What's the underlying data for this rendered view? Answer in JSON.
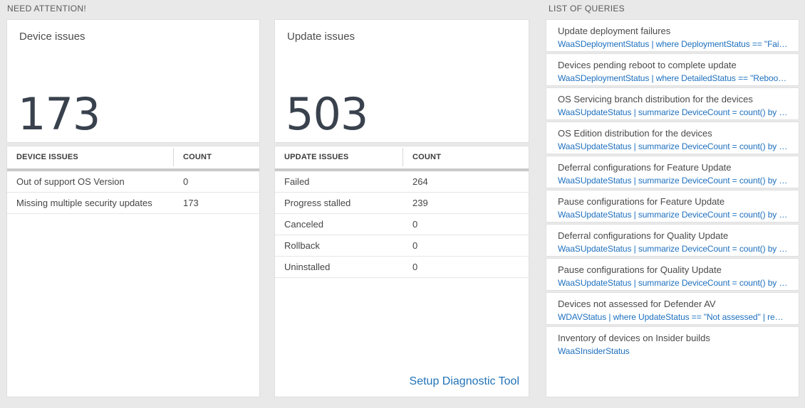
{
  "colors": {
    "page_background": "#e9e9e9",
    "link_blue": "#1e70bf",
    "big_number_color": "#39414d",
    "thick_bar_gray": "#c9c9c9"
  },
  "sections": {
    "need_attention": "NEED ATTENTION!",
    "list_of_queries": "LIST OF QUERIES"
  },
  "device_panel": {
    "title": "Device issues",
    "big_number": "173",
    "table": {
      "headers": [
        "DEVICE ISSUES",
        "COUNT"
      ],
      "rows": [
        [
          "Out of support OS Version",
          "0"
        ],
        [
          "Missing multiple security updates",
          "173"
        ]
      ]
    }
  },
  "update_panel": {
    "title": "Update issues",
    "big_number": "503",
    "table": {
      "headers": [
        "UPDATE ISSUES",
        "COUNT"
      ],
      "rows": [
        [
          "Failed",
          "264"
        ],
        [
          "Progress stalled",
          "239"
        ],
        [
          "Canceled",
          "0"
        ],
        [
          "Rollback",
          "0"
        ],
        [
          "Uninstalled",
          "0"
        ]
      ]
    },
    "link": "Setup Diagnostic Tool"
  },
  "queries": [
    {
      "title": "Update deployment failures",
      "query": "WaaSDeploymentStatus | where DeploymentStatus == \"Failed\" |..."
    },
    {
      "title": "Devices pending reboot to complete update",
      "query": "WaaSDeploymentStatus | where DetailedStatus == \"Reboot pend..."
    },
    {
      "title": "OS Servicing branch distribution for the devices",
      "query": "WaaSUpdateStatus | summarize DeviceCount = count() by OSSer..."
    },
    {
      "title": "OS Edition distribution for the devices",
      "query": "WaaSUpdateStatus | summarize DeviceCount = count() by OSEdit..."
    },
    {
      "title": "Deferral configurations for Feature Update",
      "query": "WaaSUpdateStatus | summarize DeviceCount = count() by Featur..."
    },
    {
      "title": "Pause configurations for Feature Update",
      "query": "WaaSUpdateStatus | summarize DeviceCount = count() by Featur..."
    },
    {
      "title": "Deferral configurations for Quality Update",
      "query": "WaaSUpdateStatus | summarize DeviceCount = count() by Qualit..."
    },
    {
      "title": "Pause configurations for Quality Update",
      "query": "WaaSUpdateStatus | summarize DeviceCount = count() by Qualit..."
    },
    {
      "title": "Devices not assessed for Defender AV",
      "query": "WDAVStatus | where UpdateStatus == \"Not assessed\" | render ta..."
    },
    {
      "title": "Inventory of devices on Insider builds",
      "query": "WaaSInsiderStatus"
    }
  ]
}
